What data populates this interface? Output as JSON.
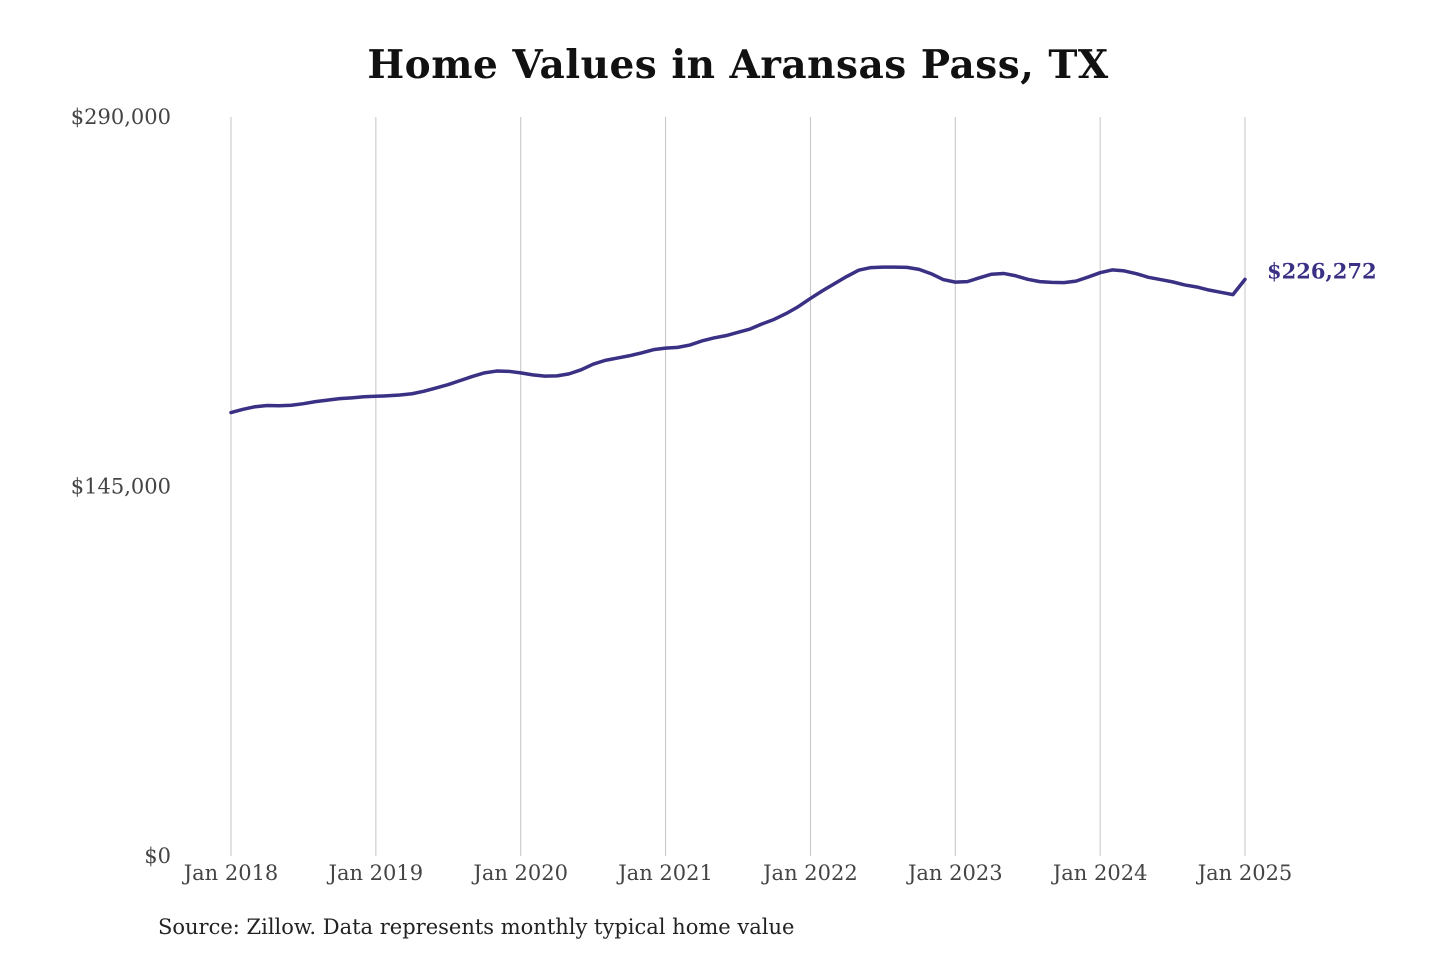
{
  "chart_data": {
    "type": "line",
    "title": "Home Values in Aransas Pass, TX",
    "xlabel": "",
    "ylabel": "",
    "ylim": [
      0,
      290000
    ],
    "y_ticks": [
      0,
      145000,
      290000
    ],
    "y_tick_labels": [
      "$0",
      "$145,000",
      "$290,000"
    ],
    "x_ticks": [
      "2018-01",
      "2019-01",
      "2020-01",
      "2021-01",
      "2022-01",
      "2023-01",
      "2024-01",
      "2025-01"
    ],
    "x_tick_labels": [
      "Jan 2018",
      "Jan 2019",
      "Jan 2020",
      "Jan 2021",
      "Jan 2022",
      "Jan 2023",
      "Jan 2024",
      "Jan 2025"
    ],
    "grid": "vertical",
    "series": [
      {
        "color": "#3a3185",
        "x": [
          "2018-01",
          "2018-02",
          "2018-03",
          "2018-04",
          "2018-05",
          "2018-06",
          "2018-07",
          "2018-08",
          "2018-09",
          "2018-10",
          "2018-11",
          "2018-12",
          "2019-01",
          "2019-02",
          "2019-03",
          "2019-04",
          "2019-05",
          "2019-06",
          "2019-07",
          "2019-08",
          "2019-09",
          "2019-10",
          "2019-11",
          "2019-12",
          "2020-01",
          "2020-02",
          "2020-03",
          "2020-04",
          "2020-05",
          "2020-06",
          "2020-07",
          "2020-08",
          "2020-09",
          "2020-10",
          "2020-11",
          "2020-12",
          "2021-01",
          "2021-02",
          "2021-03",
          "2021-04",
          "2021-05",
          "2021-06",
          "2021-07",
          "2021-08",
          "2021-09",
          "2021-10",
          "2021-11",
          "2021-12",
          "2022-01",
          "2022-02",
          "2022-03",
          "2022-04",
          "2022-05",
          "2022-06",
          "2022-07",
          "2022-08",
          "2022-09",
          "2022-10",
          "2022-11",
          "2022-12",
          "2023-01",
          "2023-02",
          "2023-03",
          "2023-04",
          "2023-05",
          "2023-06",
          "2023-07",
          "2023-08",
          "2023-09",
          "2023-10",
          "2023-11",
          "2023-12",
          "2024-01",
          "2024-02",
          "2024-03",
          "2024-04",
          "2024-05",
          "2024-06",
          "2024-07",
          "2024-08",
          "2024-09",
          "2024-10",
          "2024-11",
          "2024-12",
          "2025-01"
        ],
        "values": [
          174000,
          175300,
          176300,
          176800,
          176700,
          176900,
          177500,
          178300,
          178900,
          179500,
          179800,
          180200,
          180400,
          180600,
          180900,
          181400,
          182400,
          183700,
          185000,
          186600,
          188200,
          189600,
          190300,
          190200,
          189600,
          188800,
          188300,
          188400,
          189200,
          190800,
          193000,
          194500,
          195400,
          196300,
          197400,
          198700,
          199300,
          199600,
          200500,
          202100,
          203300,
          204200,
          205500,
          206800,
          208800,
          210600,
          212900,
          215600,
          218800,
          221800,
          224600,
          227400,
          229900,
          230900,
          231100,
          231100,
          231000,
          230200,
          228500,
          226200,
          225200,
          225400,
          226900,
          228300,
          228600,
          227700,
          226300,
          225400,
          225100,
          225000,
          225600,
          227200,
          228900,
          230000,
          229600,
          228500,
          227100,
          226200,
          225300,
          224100,
          223300,
          222100,
          221200,
          220300,
          226272
        ]
      }
    ],
    "end_label": "$226,272",
    "end_label_color": "#3a3185",
    "line_color": "#3a3185",
    "grid_color": "#c4c4c4"
  },
  "source_note": "Source: Zillow. Data represents monthly typical home value"
}
